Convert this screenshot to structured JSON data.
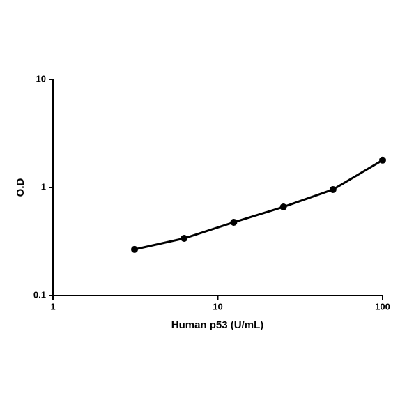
{
  "chart_data": {
    "type": "line",
    "x_label": "Human p53 (U/mL)",
    "y_label": "O.D",
    "x": [
      3.125,
      6.25,
      12.5,
      25,
      50,
      100
    ],
    "series": [
      {
        "color": "#000000",
        "values": [
          0.267,
          0.338,
          0.476,
          0.66,
          0.957,
          1.79
        ]
      }
    ],
    "xlim": [
      1,
      100
    ],
    "xticks": [
      1,
      10,
      100
    ],
    "ylim": [
      0.1,
      10
    ],
    "yticks": [
      0.1,
      1,
      10
    ],
    "xscale": "log",
    "yscale": "log",
    "grid": false
  }
}
